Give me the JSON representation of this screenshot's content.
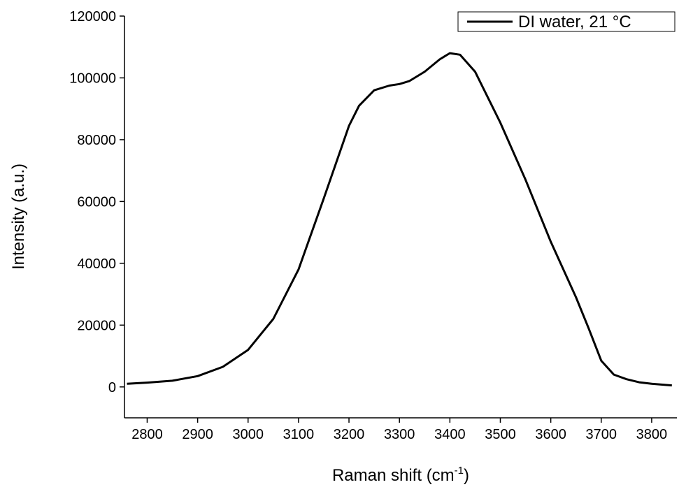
{
  "chart_data": {
    "type": "line",
    "xlabel": {
      "text": "Raman shift (cm",
      "sup": "-1",
      "tail": ")"
    },
    "ylabel": "Intensity (a.u.)",
    "xlim": [
      2755,
      3850
    ],
    "ylim": [
      -10000,
      120000
    ],
    "xticks": [
      2800,
      2900,
      3000,
      3100,
      3200,
      3300,
      3400,
      3500,
      3600,
      3700,
      3800
    ],
    "yticks": [
      0,
      20000,
      40000,
      60000,
      80000,
      100000,
      120000
    ],
    "legend": "upper right",
    "x": [
      2760,
      2800,
      2850,
      2900,
      2950,
      3000,
      3050,
      3100,
      3150,
      3200,
      3220,
      3250,
      3280,
      3300,
      3320,
      3350,
      3380,
      3400,
      3420,
      3450,
      3500,
      3550,
      3600,
      3650,
      3675,
      3700,
      3725,
      3750,
      3775,
      3800,
      3840
    ],
    "series": [
      {
        "name": "DI water, 21 °C",
        "color": "#000000",
        "values": [
          1000,
          1400,
          2000,
          3500,
          6500,
          12000,
          22000,
          38000,
          61000,
          84500,
          91000,
          96000,
          97500,
          98000,
          99000,
          102000,
          106000,
          108000,
          107500,
          102000,
          85500,
          67000,
          47000,
          29000,
          19000,
          8500,
          4000,
          2500,
          1500,
          1000,
          500
        ]
      }
    ]
  }
}
